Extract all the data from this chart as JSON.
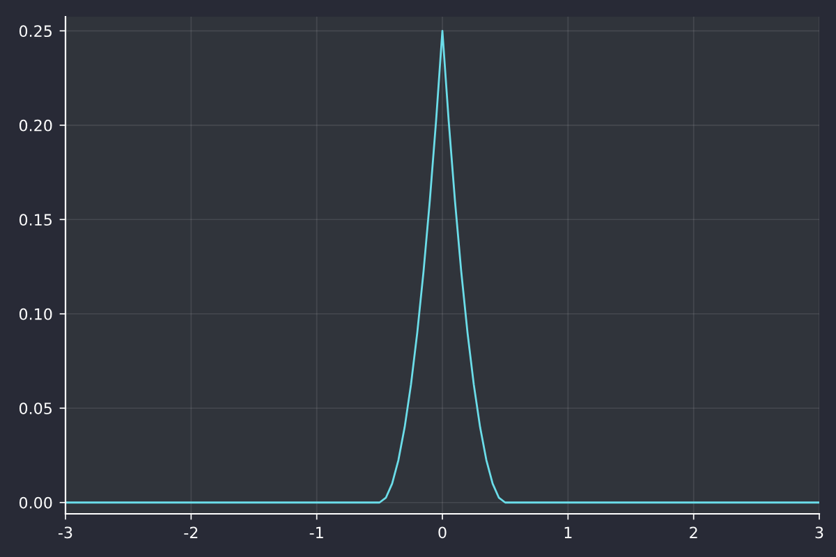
{
  "chart_data": {
    "type": "line",
    "x": [
      -3,
      -0.5,
      -0.45,
      -0.4,
      -0.35,
      -0.3,
      -0.25,
      -0.2,
      -0.15,
      -0.1,
      -0.05,
      0,
      0.05,
      0.1,
      0.15,
      0.2,
      0.25,
      0.3,
      0.35,
      0.4,
      0.45,
      0.5,
      3
    ],
    "series": [
      {
        "color": "#6bdde9",
        "values": [
          0,
          0,
          0.0025,
          0.01,
          0.0225,
          0.04,
          0.0625,
          0.09,
          0.1225,
          0.16,
          0.2025,
          0.25,
          0.2025,
          0.16,
          0.1225,
          0.09,
          0.0625,
          0.04,
          0.0225,
          0.01,
          0.0025,
          0,
          0
        ]
      }
    ],
    "xlim": [
      -3,
      3
    ],
    "xticks": [
      -3,
      -2,
      -1,
      0,
      1,
      2,
      3
    ],
    "ylim": [
      -0.006,
      0.2575
    ],
    "yticks": [
      {
        "value": 0,
        "label": "0.00"
      },
      {
        "value": 0.05,
        "label": "0.05"
      },
      {
        "value": 0.1,
        "label": "0.10"
      },
      {
        "value": 0.15,
        "label": "0.15"
      },
      {
        "value": 0.2,
        "label": "0.20"
      },
      {
        "value": 0.25,
        "label": "0.25"
      }
    ],
    "grid": true,
    "legend": false
  }
}
